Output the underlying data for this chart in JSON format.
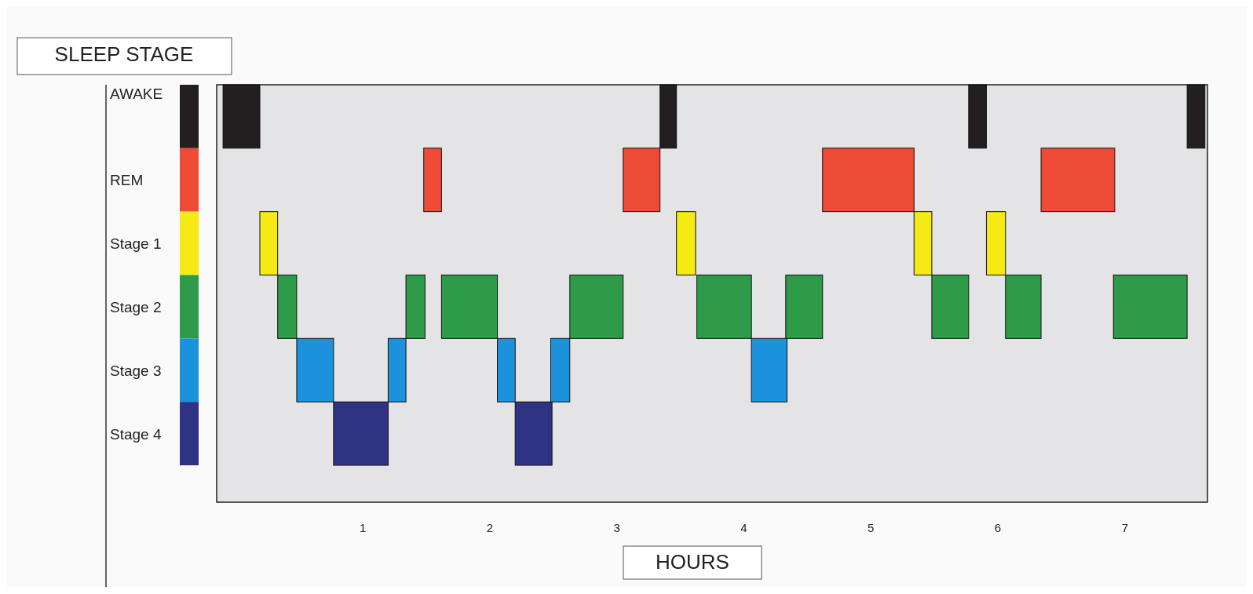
{
  "chart_data": {
    "type": "bar",
    "orientation": "horizontal",
    "title": "SLEEP STAGE",
    "xlabel": "HOURS",
    "categories": [
      "AWAKE",
      "REM",
      "Stage 1",
      "Stage 2",
      "Stage 3",
      "Stage 4"
    ],
    "xlim": [
      -0.15,
      7.65
    ],
    "xticks": [
      1,
      2,
      3,
      4,
      5,
      6,
      7
    ],
    "grid": false,
    "series": [
      {
        "colors": [
          "#231f20",
          "#ee4b36",
          "#f5ea14",
          "#2e9b48",
          "#1c92dc",
          "#2e3384"
        ],
        "base": [
          -0.1,
          1.48,
          0.19,
          0.33,
          0.48,
          0.77
        ],
        "values": [
          0.29,
          0.14,
          0.14,
          0.15,
          0.29,
          0.43
        ]
      },
      {
        "colors": [
          "#231f20",
          "#ee4b36",
          "#f5ea14",
          "#2e9b48",
          "#1c92dc",
          "#2e3384"
        ],
        "base": [
          3.34,
          3.05,
          3.47,
          1.34,
          1.2,
          2.2
        ],
        "values": [
          0.13,
          0.29,
          0.15,
          0.15,
          0.14,
          0.29
        ]
      },
      {
        "colors": [
          "#231f20",
          "#ee4b36",
          "#f5ea14",
          "#2e9b48",
          "#1c92dc",
          null
        ],
        "base": [
          5.77,
          4.62,
          5.34,
          1.62,
          2.06,
          null
        ],
        "values": [
          0.14,
          0.72,
          0.14,
          0.44,
          0.14,
          null
        ]
      },
      {
        "colors": [
          "#231f20",
          "#ee4b36",
          "#f5ea14",
          "#2e9b48",
          "#1c92dc",
          null
        ],
        "base": [
          7.49,
          6.34,
          5.91,
          2.63,
          2.48,
          null
        ],
        "values": [
          0.14,
          0.58,
          0.15,
          0.42,
          0.15,
          null
        ]
      },
      {
        "colors": [
          null,
          null,
          null,
          "#2e9b48",
          "#1c92dc",
          null
        ],
        "base": [
          null,
          null,
          null,
          3.63,
          4.06,
          null
        ],
        "values": [
          null,
          null,
          null,
          0.43,
          0.28,
          null
        ]
      },
      {
        "colors": [
          null,
          null,
          null,
          "#2e9b48",
          null,
          null
        ],
        "base": [
          null,
          null,
          null,
          4.33,
          null,
          null
        ],
        "values": [
          null,
          null,
          null,
          0.29,
          null,
          null
        ]
      },
      {
        "colors": [
          null,
          null,
          null,
          "#2e9b48",
          null,
          null
        ],
        "base": [
          null,
          null,
          null,
          5.48,
          null,
          null
        ],
        "values": [
          null,
          null,
          null,
          0.29,
          null,
          null
        ]
      },
      {
        "colors": [
          null,
          null,
          null,
          "#2e9b48",
          null,
          null
        ],
        "base": [
          null,
          null,
          null,
          6.06,
          null,
          null
        ],
        "values": [
          null,
          null,
          null,
          0.28,
          null,
          null
        ]
      },
      {
        "colors": [
          null,
          null,
          null,
          "#2e9b48",
          null,
          null
        ],
        "base": [
          null,
          null,
          null,
          6.91,
          null,
          null
        ],
        "values": [
          null,
          null,
          null,
          0.58,
          null,
          null
        ]
      }
    ]
  }
}
